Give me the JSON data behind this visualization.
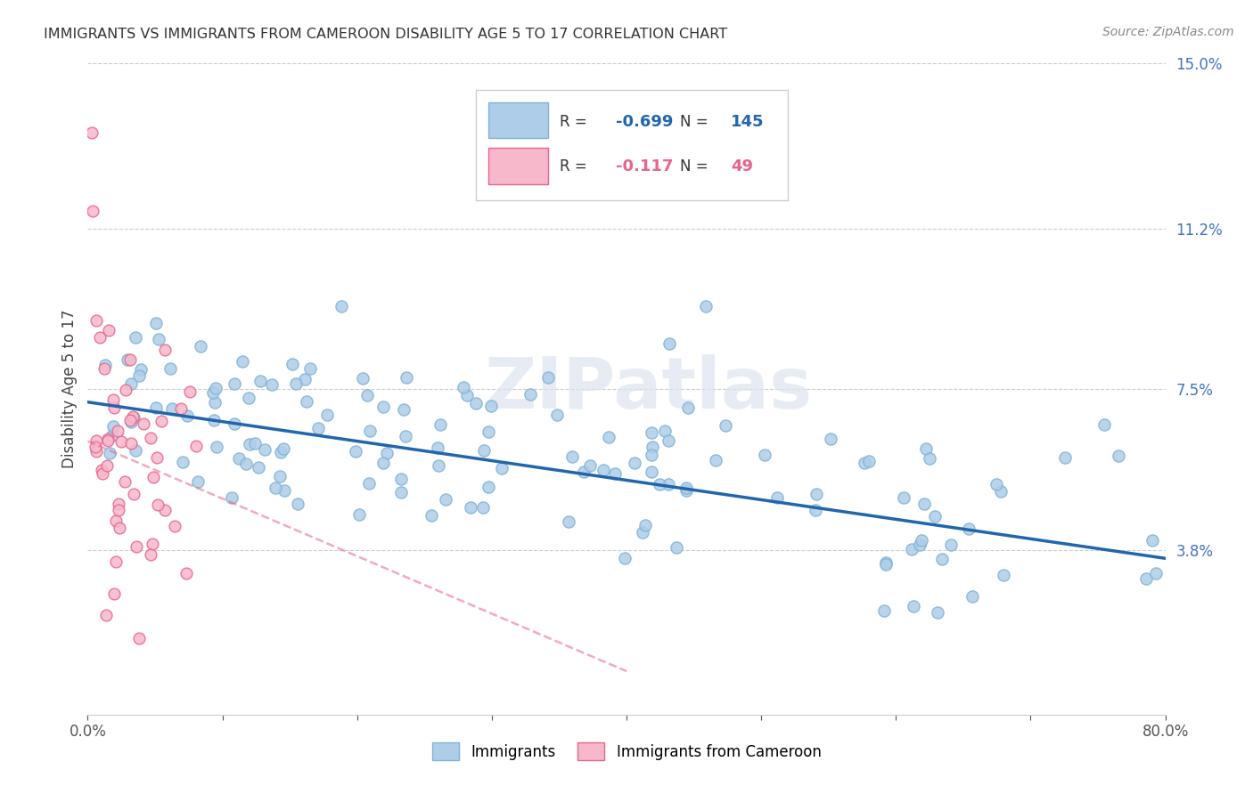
{
  "title": "IMMIGRANTS VS IMMIGRANTS FROM CAMEROON DISABILITY AGE 5 TO 17 CORRELATION CHART",
  "source": "Source: ZipAtlas.com",
  "ylabel": "Disability Age 5 to 17",
  "xlim": [
    0.0,
    0.8
  ],
  "ylim": [
    0.0,
    0.15
  ],
  "xticks": [
    0.0,
    0.1,
    0.2,
    0.3,
    0.4,
    0.5,
    0.6,
    0.7,
    0.8
  ],
  "xticklabels": [
    "0.0%",
    "",
    "",
    "",
    "",
    "",
    "",
    "",
    "80.0%"
  ],
  "ytick_labels_right": [
    "15.0%",
    "11.2%",
    "7.5%",
    "3.8%"
  ],
  "ytick_vals_right": [
    0.15,
    0.112,
    0.075,
    0.038
  ],
  "blue_scatter_color": "#aecde8",
  "blue_edge_color": "#7fb3d6",
  "blue_line_color": "#2166ac",
  "pink_scatter_color": "#f7b8cb",
  "pink_edge_color": "#e8648a",
  "pink_line_color": "#e8648a",
  "legend_R_blue": "-0.699",
  "legend_N_blue": "145",
  "legend_R_pink": "-0.117",
  "legend_N_pink": "49",
  "watermark": "ZIPatlas",
  "blue_trendline_x": [
    0.0,
    0.8
  ],
  "blue_trendline_y": [
    0.072,
    0.036
  ],
  "pink_trendline_x": [
    0.0,
    0.4
  ],
  "pink_trendline_y": [
    0.063,
    0.01
  ]
}
